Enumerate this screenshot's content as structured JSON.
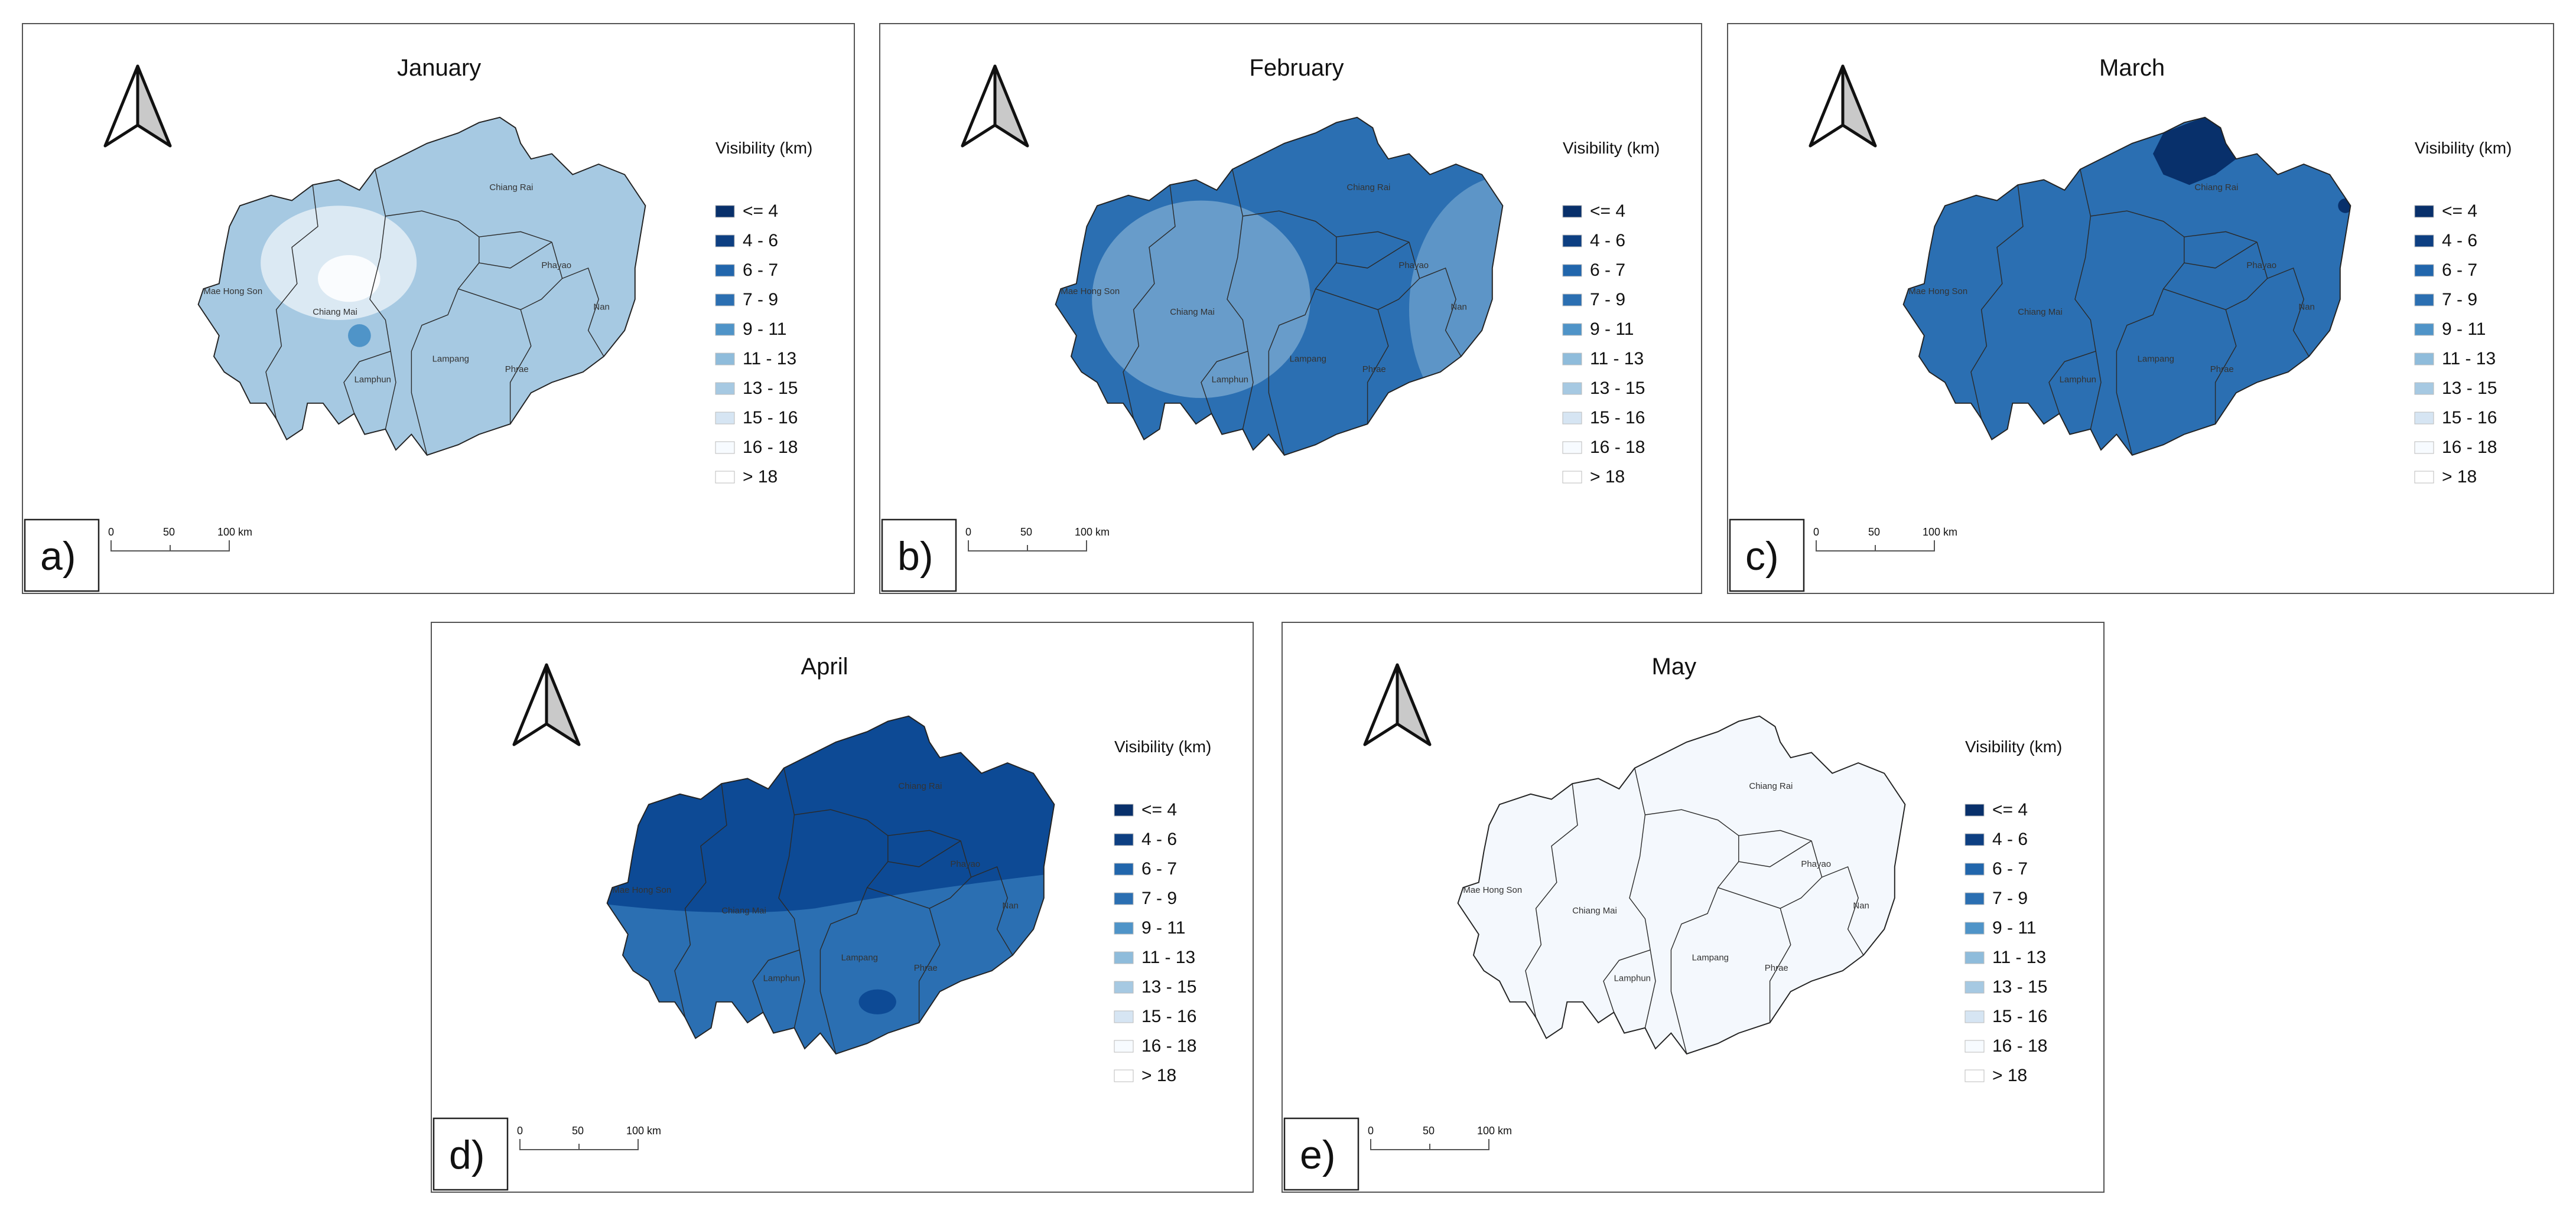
{
  "legend": {
    "title": "Visibility (km)",
    "classes": [
      {
        "label": "<= 4",
        "color": "#08306b"
      },
      {
        "label": "4 - 6",
        "color": "#0d3f82"
      },
      {
        "label": "6 - 7",
        "color": "#2166ac"
      },
      {
        "label": "7 - 9",
        "color": "#2b6fb2"
      },
      {
        "label": "9 - 11",
        "color": "#4f94c8"
      },
      {
        "label": "11 - 13",
        "color": "#8fbcdb"
      },
      {
        "label": "13 - 15",
        "color": "#a6c9e2"
      },
      {
        "label": "15 - 16",
        "color": "#d6e5f3"
      },
      {
        "label": "16 - 18",
        "color": "#f7fbff"
      },
      {
        "label": "> 18",
        "color": "#ffffff"
      }
    ]
  },
  "scalebar": {
    "ticks": [
      "0",
      "50",
      "100 km"
    ]
  },
  "provinces": [
    "Mae Hong Son",
    "Chiang Mai",
    "Chiang Rai",
    "Phayao",
    "Nan",
    "Lamphun",
    "Lampang",
    "Phrae"
  ],
  "panels": [
    {
      "id": "a",
      "tag": "a)",
      "title": "January",
      "base_color": "#a6c9e2",
      "overlays": [
        {
          "shape": "ellipse-white-large",
          "color": "#ffffff",
          "opacity": 0.6
        },
        {
          "shape": "ellipse-white-small",
          "color": "#ffffff",
          "opacity": 0.85
        },
        {
          "shape": "dot",
          "color": "#4f94c8",
          "opacity": 1
        }
      ]
    },
    {
      "id": "b",
      "tag": "b)",
      "title": "February",
      "base_color": "#2b6fb2",
      "overlays": [
        {
          "shape": "ellipse-west",
          "color": "#a6c9e2",
          "opacity": 0.5
        },
        {
          "shape": "ellipse-east",
          "color": "#8fbcdb",
          "opacity": 0.5
        }
      ]
    },
    {
      "id": "c",
      "tag": "c)",
      "title": "March",
      "base_color": "#2b6fb2",
      "overlays": [
        {
          "shape": "north-cap",
          "color": "#08306b",
          "opacity": 1
        },
        {
          "shape": "east-dot",
          "color": "#08306b",
          "opacity": 1
        }
      ]
    },
    {
      "id": "d",
      "tag": "d)",
      "title": "April",
      "base_color": "#2b6fb2",
      "overlays": [
        {
          "shape": "north-half",
          "color": "#0d4a95",
          "opacity": 1
        },
        {
          "shape": "dot-pair",
          "color": "#0d4a95",
          "opacity": 1
        }
      ]
    },
    {
      "id": "e",
      "tag": "e)",
      "title": "May",
      "base_color": "#f4f8fd",
      "overlays": []
    }
  ]
}
